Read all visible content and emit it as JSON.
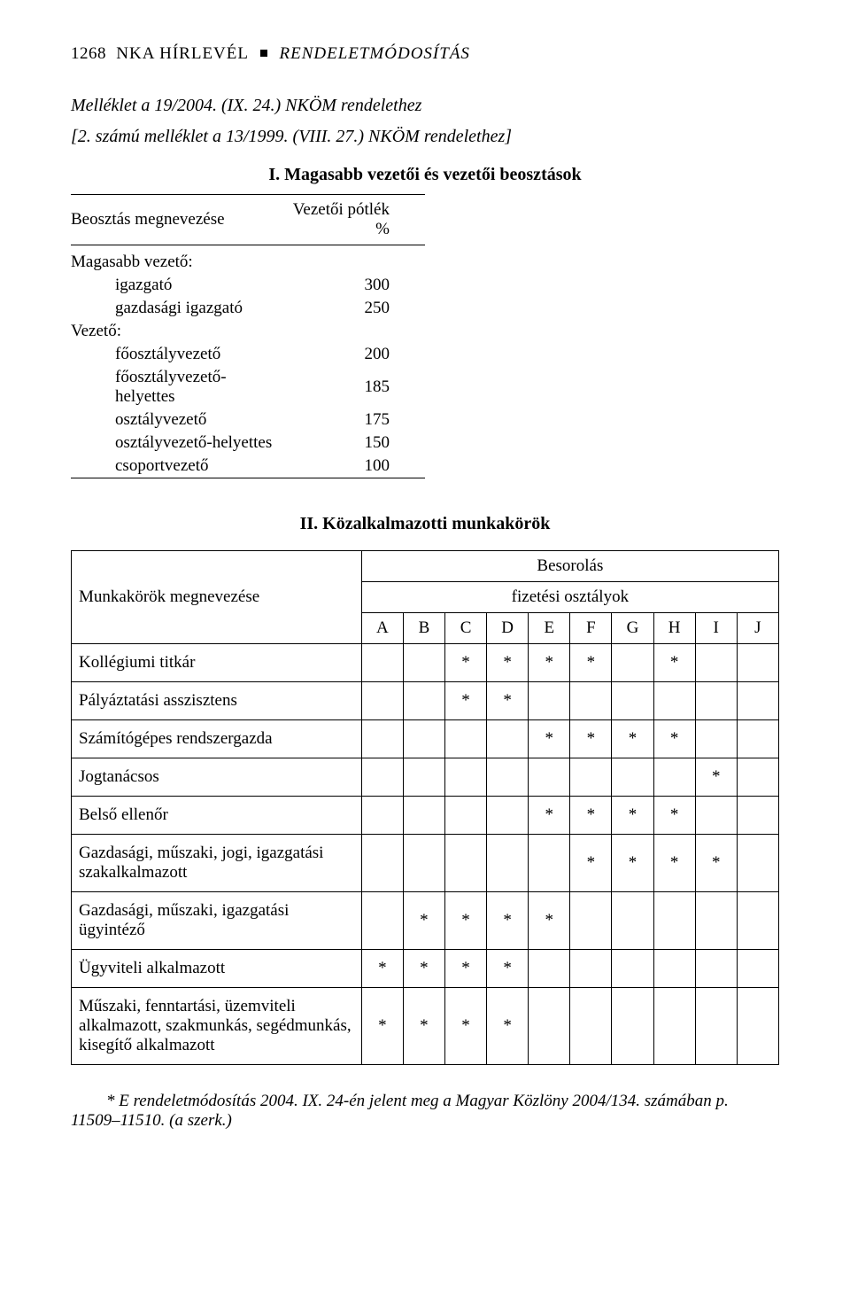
{
  "header": {
    "page_num": "1268",
    "magazine": "NKA HÍRLEVÉL",
    "section": "RENDELETMÓDOSÍTÁS"
  },
  "intro": {
    "line1": "Melléklet a 19/2004. (IX. 24.) NKÖM rendelethez",
    "line2": "[2. számú melléklet a 13/1999. (VIII. 27.) NKÖM rendelethez]"
  },
  "section1": {
    "title_prefix": "I.",
    "title_rest": " Magasabb vezetői és vezetői beosztások",
    "col_left": "Beosztás megnevezése",
    "col_right": "Vezetői pótlék %",
    "group1_label": "Magasabb vezető:",
    "group2_label": "Vezető:",
    "rows": [
      {
        "name": "igazgató",
        "value": "300",
        "indent": true,
        "group_start": false
      },
      {
        "name": "gazdasági igazgató",
        "value": "250",
        "indent": true,
        "group_start": false
      },
      {
        "name": "főosztályvezető",
        "value": "200",
        "indent": true,
        "group_start": false
      },
      {
        "name": "főosztályvezető-helyettes",
        "value": "185",
        "indent": true,
        "group_start": false
      },
      {
        "name": "osztályvezető",
        "value": "175",
        "indent": true,
        "group_start": false
      },
      {
        "name": "osztályvezető-helyettes",
        "value": "150",
        "indent": true,
        "group_start": false
      },
      {
        "name": "csoportvezető",
        "value": "100",
        "indent": true,
        "group_start": false
      }
    ]
  },
  "section2": {
    "title_prefix": "II.",
    "title_rest": " Közalkalmazotti munkakörök",
    "header": {
      "row_label": "Munkakörök megnevezése",
      "group_top": "Besorolás",
      "group_mid": "fizetési osztályok",
      "letters": [
        "A",
        "B",
        "C",
        "D",
        "E",
        "F",
        "G",
        "H",
        "I",
        "J"
      ]
    },
    "mark": "*",
    "rows": [
      {
        "name": "Kollégiumi titkár",
        "cells": [
          "",
          "",
          "*",
          "*",
          "*",
          "*",
          "",
          "*",
          "",
          ""
        ]
      },
      {
        "name": "Pályáztatási asszisztens",
        "cells": [
          "",
          "",
          "*",
          "*",
          "",
          "",
          "",
          "",
          "",
          ""
        ]
      },
      {
        "name": "Számítógépes rendszergazda",
        "cells": [
          "",
          "",
          "",
          "",
          "*",
          "*",
          "*",
          "*",
          "",
          ""
        ]
      },
      {
        "name": "Jogtanácsos",
        "cells": [
          "",
          "",
          "",
          "",
          "",
          "",
          "",
          "",
          "*",
          ""
        ]
      },
      {
        "name": "Belső ellenőr",
        "cells": [
          "",
          "",
          "",
          "",
          "*",
          "*",
          "*",
          "*",
          "",
          ""
        ]
      },
      {
        "name": "Gazdasági, műszaki, jogi, igazgatási szakalkalmazott",
        "cells": [
          "",
          "",
          "",
          "",
          "",
          "*",
          "*",
          "*",
          "*",
          ""
        ]
      },
      {
        "name": "Gazdasági, műszaki, igazgatási ügyintéző",
        "cells": [
          "",
          "*",
          "*",
          "*",
          "*",
          "",
          "",
          "",
          "",
          ""
        ]
      },
      {
        "name": "Ügyviteli alkalmazott",
        "cells": [
          "*",
          "*",
          "*",
          "*",
          "",
          "",
          "",
          "",
          "",
          ""
        ]
      },
      {
        "name": "Műszaki, fenntartási, üzemviteli alkalmazott, szakmunkás, segédmunkás, kisegítő alkalmazott",
        "cells": [
          "*",
          "*",
          "*",
          "*",
          "",
          "",
          "",
          "",
          "",
          ""
        ]
      }
    ]
  },
  "footnote": {
    "line1": "* E rendeletmódosítás 2004. IX. 24-én jelent meg a Magyar Közlöny 2004/134. számában p.",
    "line2": "11509–11510. (a szerk.)"
  }
}
